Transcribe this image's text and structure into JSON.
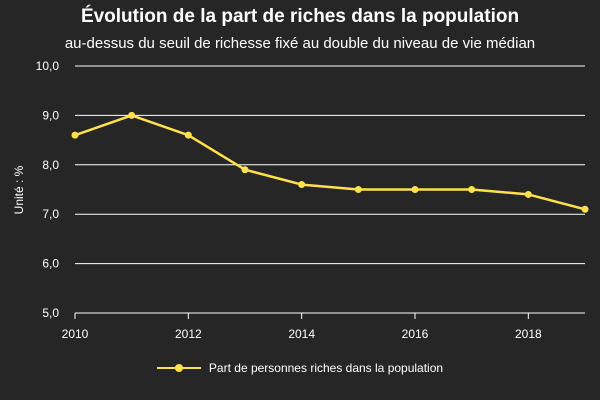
{
  "chart_data": {
    "type": "line",
    "title": "Évolution de la part de riches dans la population",
    "subtitle": "au-dessus du seuil de richesse fixé au double du niveau de vie médian",
    "xlabel": "",
    "ylabel": "Unité : %",
    "xlim": [
      2010,
      2019
    ],
    "ylim": [
      5,
      10
    ],
    "x_ticks": [
      "2010",
      "2012",
      "2014",
      "2016",
      "2018"
    ],
    "y_ticks": [
      "5,0",
      "6,0",
      "7,0",
      "8,0",
      "9,0",
      "10,0"
    ],
    "x": [
      2010,
      2011,
      2012,
      2013,
      2014,
      2015,
      2016,
      2017,
      2018,
      2019
    ],
    "series": [
      {
        "name": "Part de personnes riches dans la population",
        "color": "#ffe14d",
        "values": [
          8.6,
          9.0,
          8.6,
          7.9,
          7.6,
          7.5,
          7.5,
          7.5,
          7.4,
          7.1
        ]
      }
    ],
    "grid": true,
    "legend_position": "bottom",
    "colors": {
      "background": "#262626",
      "text": "#ffffff",
      "grid": "#ffffff",
      "line": "#ffe14d"
    }
  }
}
